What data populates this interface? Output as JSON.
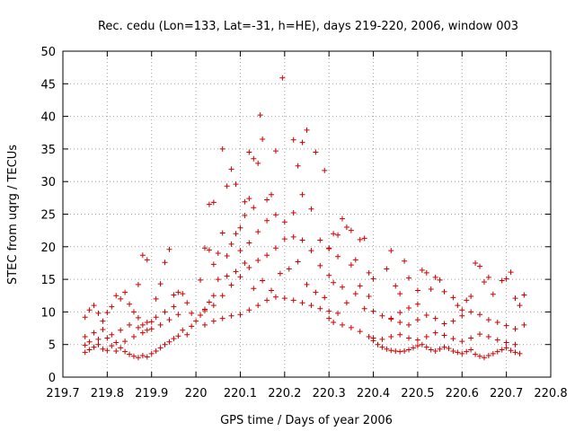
{
  "chart_data": {
    "type": "scatter",
    "title": "Rec. cedu (Lon=133, Lat=-31, h=HE), days 219-220, 2006, window 003",
    "xlabel": "GPS time / Days of year 2006",
    "ylabel": "STEC from uqrg / TECUs",
    "xlim": [
      219.7,
      220.8
    ],
    "ylim": [
      0,
      50
    ],
    "xticks": [
      219.7,
      219.8,
      219.9,
      220.0,
      220.1,
      220.2,
      220.3,
      220.4,
      220.5,
      220.6,
      220.7,
      220.8
    ],
    "xtick_labels": [
      "219.7",
      "219.8",
      "219.9",
      "220",
      "220.1",
      "220.2",
      "220.3",
      "220.4",
      "220.5",
      "220.6",
      "220.7",
      "220.8"
    ],
    "yticks": [
      0,
      5,
      10,
      15,
      20,
      25,
      30,
      35,
      40,
      45,
      50
    ],
    "ytick_labels": [
      "0",
      "5",
      "10",
      "15",
      "20",
      "25",
      "30",
      "35",
      "40",
      "45",
      "50"
    ],
    "grid": true,
    "marker": "+",
    "color": "#cc0000",
    "series": [
      {
        "values": [
          [
            219.75,
            3.8
          ],
          [
            219.76,
            4.2
          ],
          [
            219.77,
            4.6
          ],
          [
            219.78,
            5.0
          ],
          [
            219.79,
            4.3
          ],
          [
            219.8,
            4.1
          ],
          [
            219.81,
            4.8
          ],
          [
            219.82,
            4.0
          ],
          [
            219.83,
            4.5
          ],
          [
            219.84,
            3.9
          ],
          [
            219.85,
            3.5
          ],
          [
            219.86,
            3.2
          ],
          [
            219.87,
            3.0
          ],
          [
            219.88,
            3.3
          ],
          [
            219.89,
            3.1
          ],
          [
            219.9,
            3.6
          ],
          [
            219.91,
            4.0
          ],
          [
            219.92,
            4.5
          ],
          [
            219.93,
            5.0
          ],
          [
            219.94,
            5.4
          ],
          [
            219.95,
            5.9
          ],
          [
            219.96,
            6.3
          ],
          [
            219.75,
            4.9
          ],
          [
            219.76,
            5.4
          ],
          [
            219.78,
            5.8
          ],
          [
            219.8,
            6.0
          ],
          [
            219.82,
            5.3
          ],
          [
            219.84,
            5.5
          ],
          [
            219.86,
            6.2
          ],
          [
            219.88,
            6.8
          ],
          [
            219.9,
            7.4
          ],
          [
            219.92,
            8.0
          ],
          [
            219.94,
            8.8
          ],
          [
            219.96,
            9.6
          ],
          [
            219.75,
            6.2
          ],
          [
            219.77,
            6.8
          ],
          [
            219.79,
            7.3
          ],
          [
            219.81,
            6.5
          ],
          [
            219.83,
            7.2
          ],
          [
            219.85,
            8.0
          ],
          [
            219.87,
            7.6
          ],
          [
            219.89,
            8.4
          ],
          [
            219.91,
            9.2
          ],
          [
            219.93,
            10.0
          ],
          [
            219.95,
            10.8
          ],
          [
            219.75,
            9.2
          ],
          [
            219.76,
            10.3
          ],
          [
            219.77,
            11.0
          ],
          [
            219.78,
            9.8
          ],
          [
            219.79,
            8.6
          ],
          [
            219.8,
            9.9
          ],
          [
            219.81,
            10.8
          ],
          [
            219.82,
            12.5
          ],
          [
            219.83,
            12.0
          ],
          [
            219.84,
            13.0
          ],
          [
            219.85,
            11.2
          ],
          [
            219.86,
            10.0
          ],
          [
            219.87,
            9.1
          ],
          [
            219.88,
            8.0
          ],
          [
            219.89,
            7.2
          ],
          [
            219.9,
            8.5
          ],
          [
            219.87,
            14.2
          ],
          [
            219.88,
            18.7
          ],
          [
            219.89,
            18.0
          ],
          [
            219.91,
            12.0
          ],
          [
            219.92,
            14.3
          ],
          [
            219.93,
            17.6
          ],
          [
            219.94,
            19.6
          ],
          [
            219.95,
            12.6
          ],
          [
            219.96,
            13.0
          ],
          [
            219.97,
            12.8
          ],
          [
            219.98,
            11.4
          ],
          [
            219.99,
            9.8
          ],
          [
            219.97,
            7.2
          ],
          [
            219.98,
            6.5
          ],
          [
            219.99,
            7.8
          ],
          [
            220.0,
            8.6
          ],
          [
            220.01,
            9.5
          ],
          [
            220.02,
            10.4
          ],
          [
            220.03,
            11.5
          ],
          [
            220.04,
            12.5
          ],
          [
            220.01,
            14.9
          ],
          [
            220.02,
            19.8
          ],
          [
            220.03,
            19.5
          ],
          [
            220.04,
            17.3
          ],
          [
            220.05,
            19.0
          ],
          [
            220.06,
            22.1
          ],
          [
            220.07,
            18.6
          ],
          [
            220.08,
            20.4
          ],
          [
            220.09,
            22.0
          ],
          [
            220.1,
            22.9
          ],
          [
            220.11,
            24.8
          ],
          [
            220.12,
            27.4
          ],
          [
            220.13,
            26.0
          ],
          [
            220.03,
            26.5
          ],
          [
            220.04,
            26.8
          ],
          [
            220.06,
            35.0
          ],
          [
            220.07,
            29.3
          ],
          [
            220.08,
            31.9
          ],
          [
            220.09,
            29.6
          ],
          [
            220.11,
            26.9
          ],
          [
            220.12,
            34.5
          ],
          [
            220.13,
            33.5
          ],
          [
            220.14,
            32.8
          ],
          [
            220.145,
            40.2
          ],
          [
            220.15,
            36.5
          ],
          [
            220.16,
            27.2
          ],
          [
            220.17,
            28.0
          ],
          [
            220.18,
            34.7
          ],
          [
            220.195,
            45.9
          ],
          [
            220.22,
            36.4
          ],
          [
            220.24,
            36.0
          ],
          [
            220.25,
            37.9
          ],
          [
            220.23,
            32.4
          ],
          [
            220.27,
            34.5
          ],
          [
            220.29,
            31.7
          ],
          [
            220.02,
            10.2
          ],
          [
            220.04,
            11.0
          ],
          [
            220.06,
            12.5
          ],
          [
            220.08,
            14.1
          ],
          [
            220.1,
            15.4
          ],
          [
            220.12,
            16.8
          ],
          [
            220.14,
            17.9
          ],
          [
            220.16,
            18.7
          ],
          [
            220.18,
            19.8
          ],
          [
            220.2,
            21.2
          ],
          [
            220.22,
            21.5
          ],
          [
            220.24,
            21.0
          ],
          [
            220.26,
            19.4
          ],
          [
            220.28,
            17.1
          ],
          [
            220.3,
            15.6
          ],
          [
            220.02,
            8.0
          ],
          [
            220.04,
            8.6
          ],
          [
            220.06,
            9.0
          ],
          [
            220.08,
            9.4
          ],
          [
            220.1,
            9.6
          ],
          [
            220.12,
            10.3
          ],
          [
            220.14,
            11.0
          ],
          [
            220.16,
            11.8
          ],
          [
            220.18,
            12.3
          ],
          [
            220.2,
            12.1
          ],
          [
            220.22,
            11.8
          ],
          [
            220.24,
            11.4
          ],
          [
            220.26,
            11.0
          ],
          [
            220.28,
            10.5
          ],
          [
            220.3,
            10.1
          ],
          [
            220.1,
            19.4
          ],
          [
            220.12,
            20.6
          ],
          [
            220.14,
            22.3
          ],
          [
            220.16,
            24.0
          ],
          [
            220.18,
            24.9
          ],
          [
            220.2,
            23.8
          ],
          [
            220.22,
            25.2
          ],
          [
            220.24,
            28.0
          ],
          [
            220.26,
            25.8
          ],
          [
            220.28,
            21.0
          ],
          [
            220.3,
            19.8
          ],
          [
            220.32,
            18.5
          ],
          [
            220.05,
            15.0
          ],
          [
            220.07,
            15.5
          ],
          [
            220.09,
            16.2
          ],
          [
            220.11,
            17.5
          ],
          [
            220.13,
            13.6
          ],
          [
            220.15,
            14.8
          ],
          [
            220.17,
            13.3
          ],
          [
            220.19,
            15.9
          ],
          [
            220.21,
            16.6
          ],
          [
            220.23,
            17.7
          ],
          [
            220.25,
            14.2
          ],
          [
            220.27,
            13.0
          ],
          [
            220.29,
            12.2
          ],
          [
            220.31,
            14.5
          ],
          [
            220.33,
            13.8
          ],
          [
            220.3,
            19.7
          ],
          [
            220.31,
            22.0
          ],
          [
            220.32,
            21.8
          ],
          [
            220.33,
            24.3
          ],
          [
            220.34,
            23.0
          ],
          [
            220.35,
            22.5
          ],
          [
            220.36,
            18.0
          ],
          [
            220.37,
            21.1
          ],
          [
            220.38,
            21.3
          ],
          [
            220.39,
            16.0
          ],
          [
            220.4,
            15.1
          ],
          [
            220.35,
            17.2
          ],
          [
            220.37,
            14.0
          ],
          [
            220.39,
            12.4
          ],
          [
            220.3,
            9.0
          ],
          [
            220.32,
            9.8
          ],
          [
            220.34,
            11.4
          ],
          [
            220.36,
            12.8
          ],
          [
            220.38,
            10.5
          ],
          [
            220.4,
            10.1
          ],
          [
            220.42,
            9.4
          ],
          [
            220.44,
            8.9
          ],
          [
            220.46,
            9.9
          ],
          [
            220.48,
            10.6
          ],
          [
            220.5,
            11.2
          ],
          [
            220.31,
            8.4
          ],
          [
            220.33,
            8.0
          ],
          [
            220.35,
            7.6
          ],
          [
            220.37,
            7.0
          ],
          [
            220.39,
            6.2
          ],
          [
            220.4,
            5.6
          ],
          [
            220.41,
            5.0
          ],
          [
            220.42,
            4.6
          ],
          [
            220.43,
            4.3
          ],
          [
            220.44,
            4.1
          ],
          [
            220.45,
            4.0
          ],
          [
            220.46,
            3.9
          ],
          [
            220.47,
            4.0
          ],
          [
            220.48,
            4.2
          ],
          [
            220.49,
            4.5
          ],
          [
            220.5,
            4.8
          ],
          [
            220.51,
            5.0
          ],
          [
            220.52,
            4.6
          ],
          [
            220.53,
            4.2
          ],
          [
            220.54,
            4.0
          ],
          [
            220.55,
            4.3
          ],
          [
            220.56,
            4.6
          ],
          [
            220.57,
            4.4
          ],
          [
            220.58,
            4.0
          ],
          [
            220.59,
            3.8
          ],
          [
            220.6,
            3.6
          ],
          [
            220.61,
            3.9
          ],
          [
            220.62,
            4.2
          ],
          [
            220.63,
            3.5
          ],
          [
            220.64,
            3.2
          ],
          [
            220.65,
            3.0
          ],
          [
            220.66,
            3.3
          ],
          [
            220.67,
            3.6
          ],
          [
            220.68,
            3.9
          ],
          [
            220.69,
            4.2
          ],
          [
            220.7,
            4.5
          ],
          [
            220.71,
            4.1
          ],
          [
            220.72,
            3.8
          ],
          [
            220.73,
            3.6
          ],
          [
            220.4,
            6.0
          ],
          [
            220.42,
            5.8
          ],
          [
            220.44,
            6.2
          ],
          [
            220.46,
            6.5
          ],
          [
            220.48,
            6.0
          ],
          [
            220.5,
            5.7
          ],
          [
            220.52,
            6.2
          ],
          [
            220.54,
            6.8
          ],
          [
            220.56,
            6.4
          ],
          [
            220.58,
            5.9
          ],
          [
            220.6,
            5.5
          ],
          [
            220.62,
            6.0
          ],
          [
            220.64,
            6.6
          ],
          [
            220.66,
            6.2
          ],
          [
            220.68,
            5.7
          ],
          [
            220.7,
            5.3
          ],
          [
            220.72,
            5.0
          ],
          [
            220.43,
            16.6
          ],
          [
            220.44,
            19.4
          ],
          [
            220.45,
            14.0
          ],
          [
            220.46,
            12.8
          ],
          [
            220.47,
            17.8
          ],
          [
            220.48,
            15.2
          ],
          [
            220.5,
            13.3
          ],
          [
            220.51,
            16.4
          ],
          [
            220.52,
            16.0
          ],
          [
            220.53,
            13.5
          ],
          [
            220.54,
            15.3
          ],
          [
            220.55,
            14.9
          ],
          [
            220.56,
            13.1
          ],
          [
            220.58,
            12.2
          ],
          [
            220.59,
            11.0
          ],
          [
            220.6,
            10.3
          ],
          [
            220.61,
            11.8
          ],
          [
            220.62,
            12.4
          ],
          [
            220.63,
            17.5
          ],
          [
            220.64,
            17.0
          ],
          [
            220.65,
            14.6
          ],
          [
            220.66,
            15.3
          ],
          [
            220.67,
            12.7
          ],
          [
            220.69,
            14.8
          ],
          [
            220.7,
            15.1
          ],
          [
            220.71,
            16.1
          ],
          [
            220.72,
            12.1
          ],
          [
            220.73,
            11.0
          ],
          [
            220.74,
            12.6
          ],
          [
            220.44,
            9.0
          ],
          [
            220.46,
            8.4
          ],
          [
            220.48,
            8.0
          ],
          [
            220.5,
            8.8
          ],
          [
            220.52,
            9.5
          ],
          [
            220.54,
            9.0
          ],
          [
            220.56,
            8.2
          ],
          [
            220.58,
            8.6
          ],
          [
            220.6,
            9.4
          ],
          [
            220.62,
            10.0
          ],
          [
            220.64,
            9.6
          ],
          [
            220.66,
            8.8
          ],
          [
            220.68,
            8.4
          ],
          [
            220.7,
            7.9
          ],
          [
            220.72,
            7.4
          ],
          [
            220.74,
            8.0
          ]
        ]
      }
    ]
  }
}
